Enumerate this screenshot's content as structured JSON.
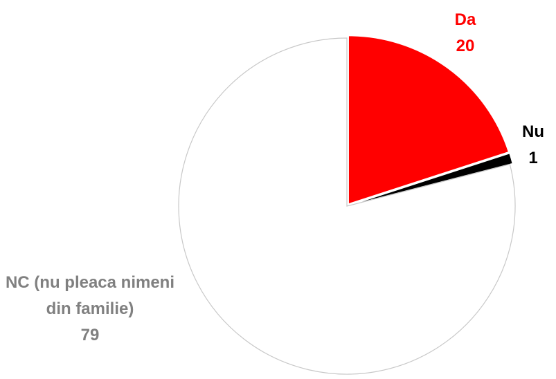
{
  "chart_data": {
    "type": "pie",
    "categories": [
      "Da",
      "Nu",
      "NC (nu pleaca nimeni din familie)"
    ],
    "values": [
      20,
      1,
      79
    ],
    "colors": [
      "#ff0000",
      "#000000",
      "#ffffff"
    ],
    "label_colors": [
      "#ff0000",
      "#000000",
      "#808080"
    ]
  }
}
